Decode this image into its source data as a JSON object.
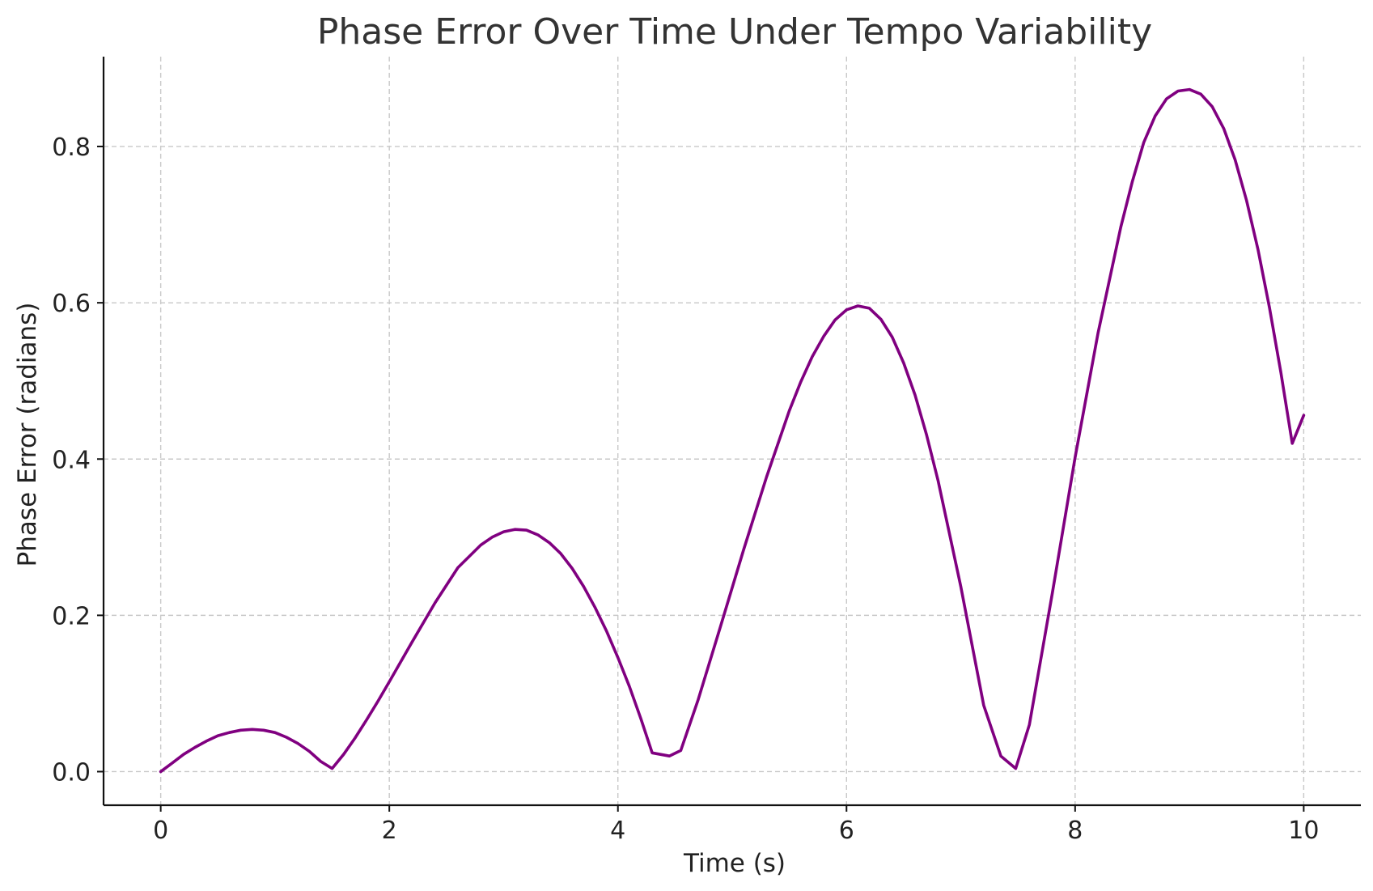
{
  "chart_data": {
    "type": "line",
    "title": "Phase Error Over Time Under Tempo Variability",
    "xlabel": "Time (s)",
    "ylabel": "Phase Error (radians)",
    "xlim": [
      -0.5,
      10.5
    ],
    "ylim": [
      -0.043,
      0.915
    ],
    "xticks": [
      0,
      2,
      4,
      6,
      8,
      10
    ],
    "yticks": [
      0.0,
      0.2,
      0.4,
      0.6,
      0.8
    ],
    "xtick_labels": [
      "0",
      "2",
      "4",
      "6",
      "8",
      "10"
    ],
    "ytick_labels": [
      "0.0",
      "0.2",
      "0.4",
      "0.6",
      "0.8"
    ],
    "grid": true,
    "line_color": "#800080",
    "series": [
      {
        "x": [
          0.0,
          0.1,
          0.2,
          0.3,
          0.4,
          0.5,
          0.6,
          0.7,
          0.8,
          0.9,
          1.0,
          1.1,
          1.2,
          1.3,
          1.4,
          1.5,
          1.6,
          1.7,
          1.8,
          1.9,
          2.0,
          2.2,
          2.4,
          2.6,
          2.8,
          2.9,
          3.0,
          3.1,
          3.2,
          3.3,
          3.4,
          3.5,
          3.6,
          3.7,
          3.8,
          3.9,
          4.0,
          4.1,
          4.2,
          4.3,
          4.45,
          4.55,
          4.7,
          4.9,
          5.1,
          5.3,
          5.5,
          5.6,
          5.7,
          5.8,
          5.9,
          6.0,
          6.1,
          6.2,
          6.3,
          6.4,
          6.5,
          6.6,
          6.7,
          6.8,
          7.0,
          7.2,
          7.35,
          7.48,
          7.6,
          7.8,
          8.0,
          8.2,
          8.4,
          8.5,
          8.6,
          8.7,
          8.8,
          8.9,
          9.0,
          9.1,
          9.2,
          9.3,
          9.4,
          9.5,
          9.6,
          9.7,
          9.8,
          9.9,
          10.0
        ],
        "y": [
          0.0,
          0.011,
          0.022,
          0.031,
          0.039,
          0.046,
          0.05,
          0.053,
          0.054,
          0.053,
          0.05,
          0.044,
          0.036,
          0.026,
          0.013,
          0.004,
          0.022,
          0.043,
          0.066,
          0.09,
          0.115,
          0.166,
          0.216,
          0.261,
          0.29,
          0.3,
          0.307,
          0.31,
          0.309,
          0.303,
          0.293,
          0.279,
          0.26,
          0.237,
          0.21,
          0.18,
          0.146,
          0.109,
          0.068,
          0.024,
          0.02,
          0.027,
          0.091,
          0.187,
          0.284,
          0.377,
          0.462,
          0.499,
          0.531,
          0.557,
          0.578,
          0.591,
          0.596,
          0.593,
          0.579,
          0.556,
          0.523,
          0.482,
          0.431,
          0.373,
          0.237,
          0.085,
          0.02,
          0.004,
          0.06,
          0.228,
          0.402,
          0.561,
          0.697,
          0.755,
          0.805,
          0.839,
          0.861,
          0.871,
          0.873,
          0.867,
          0.851,
          0.823,
          0.783,
          0.731,
          0.668,
          0.594,
          0.511,
          0.42,
          0.456
        ]
      }
    ]
  }
}
